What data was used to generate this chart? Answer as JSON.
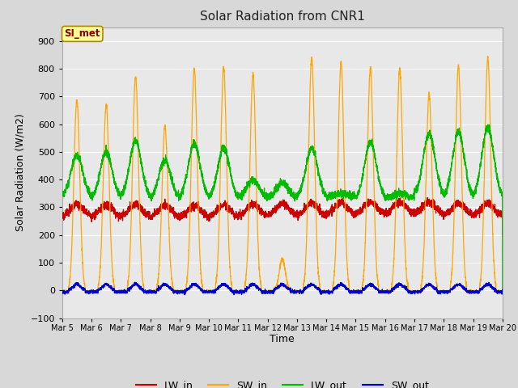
{
  "title": "Solar Radiation from CNR1",
  "xlabel": "Time",
  "ylabel": "Solar Radiation (W/m2)",
  "ylim": [
    -100,
    950
  ],
  "yticks": [
    -100,
    0,
    100,
    200,
    300,
    400,
    500,
    600,
    700,
    800,
    900
  ],
  "station_label": "SI_met",
  "background_color": "#d8d8d8",
  "plot_bg_color": "#e8e8e8",
  "grid_color": "#ffffff",
  "line_colors": {
    "LW_in": "#cc0000",
    "SW_in": "#ffa500",
    "LW_out": "#00bb00",
    "SW_out": "#0000cc"
  },
  "line_width": 0.9,
  "num_days": 15,
  "points_per_day": 288,
  "xtick_labels": [
    "Mar 5",
    "Mar 6",
    "Mar 7",
    "Mar 8",
    "Mar 9",
    "Mar 10",
    "Mar 11",
    "Mar 12",
    "Mar 13",
    "Mar 14",
    "Mar 15",
    "Mar 16",
    "Mar 17",
    "Mar 18",
    "Mar 19",
    "Mar 20"
  ]
}
